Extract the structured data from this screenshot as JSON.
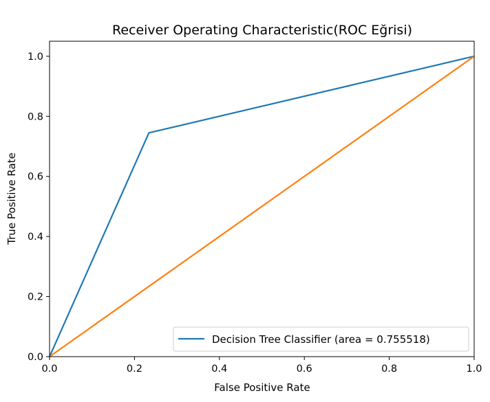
{
  "chart_data": {
    "type": "line",
    "title": "Receiver Operating Characteristic(ROC Eğrisi)",
    "xlabel": "False Positive Rate",
    "ylabel": "True Positive Rate",
    "xlim": [
      0.0,
      1.0
    ],
    "ylim": [
      0.0,
      1.05
    ],
    "xticks": [
      "0.0",
      "0.2",
      "0.4",
      "0.6",
      "0.8",
      "1.0"
    ],
    "yticks": [
      "0.0",
      "0.2",
      "0.4",
      "0.6",
      "0.8",
      "1.0"
    ],
    "grid": false,
    "legend_position": "lower right",
    "series": [
      {
        "name": "Decision Tree Classifier (area = 0.755518)",
        "color": "#1f77b4",
        "x": [
          0.0,
          0.234,
          1.0
        ],
        "y": [
          0.0,
          0.745,
          1.0
        ],
        "in_legend": true
      },
      {
        "color": "#ff7f0e",
        "x": [
          0.0,
          1.0
        ],
        "y": [
          0.0,
          1.0
        ],
        "in_legend": false
      }
    ]
  }
}
